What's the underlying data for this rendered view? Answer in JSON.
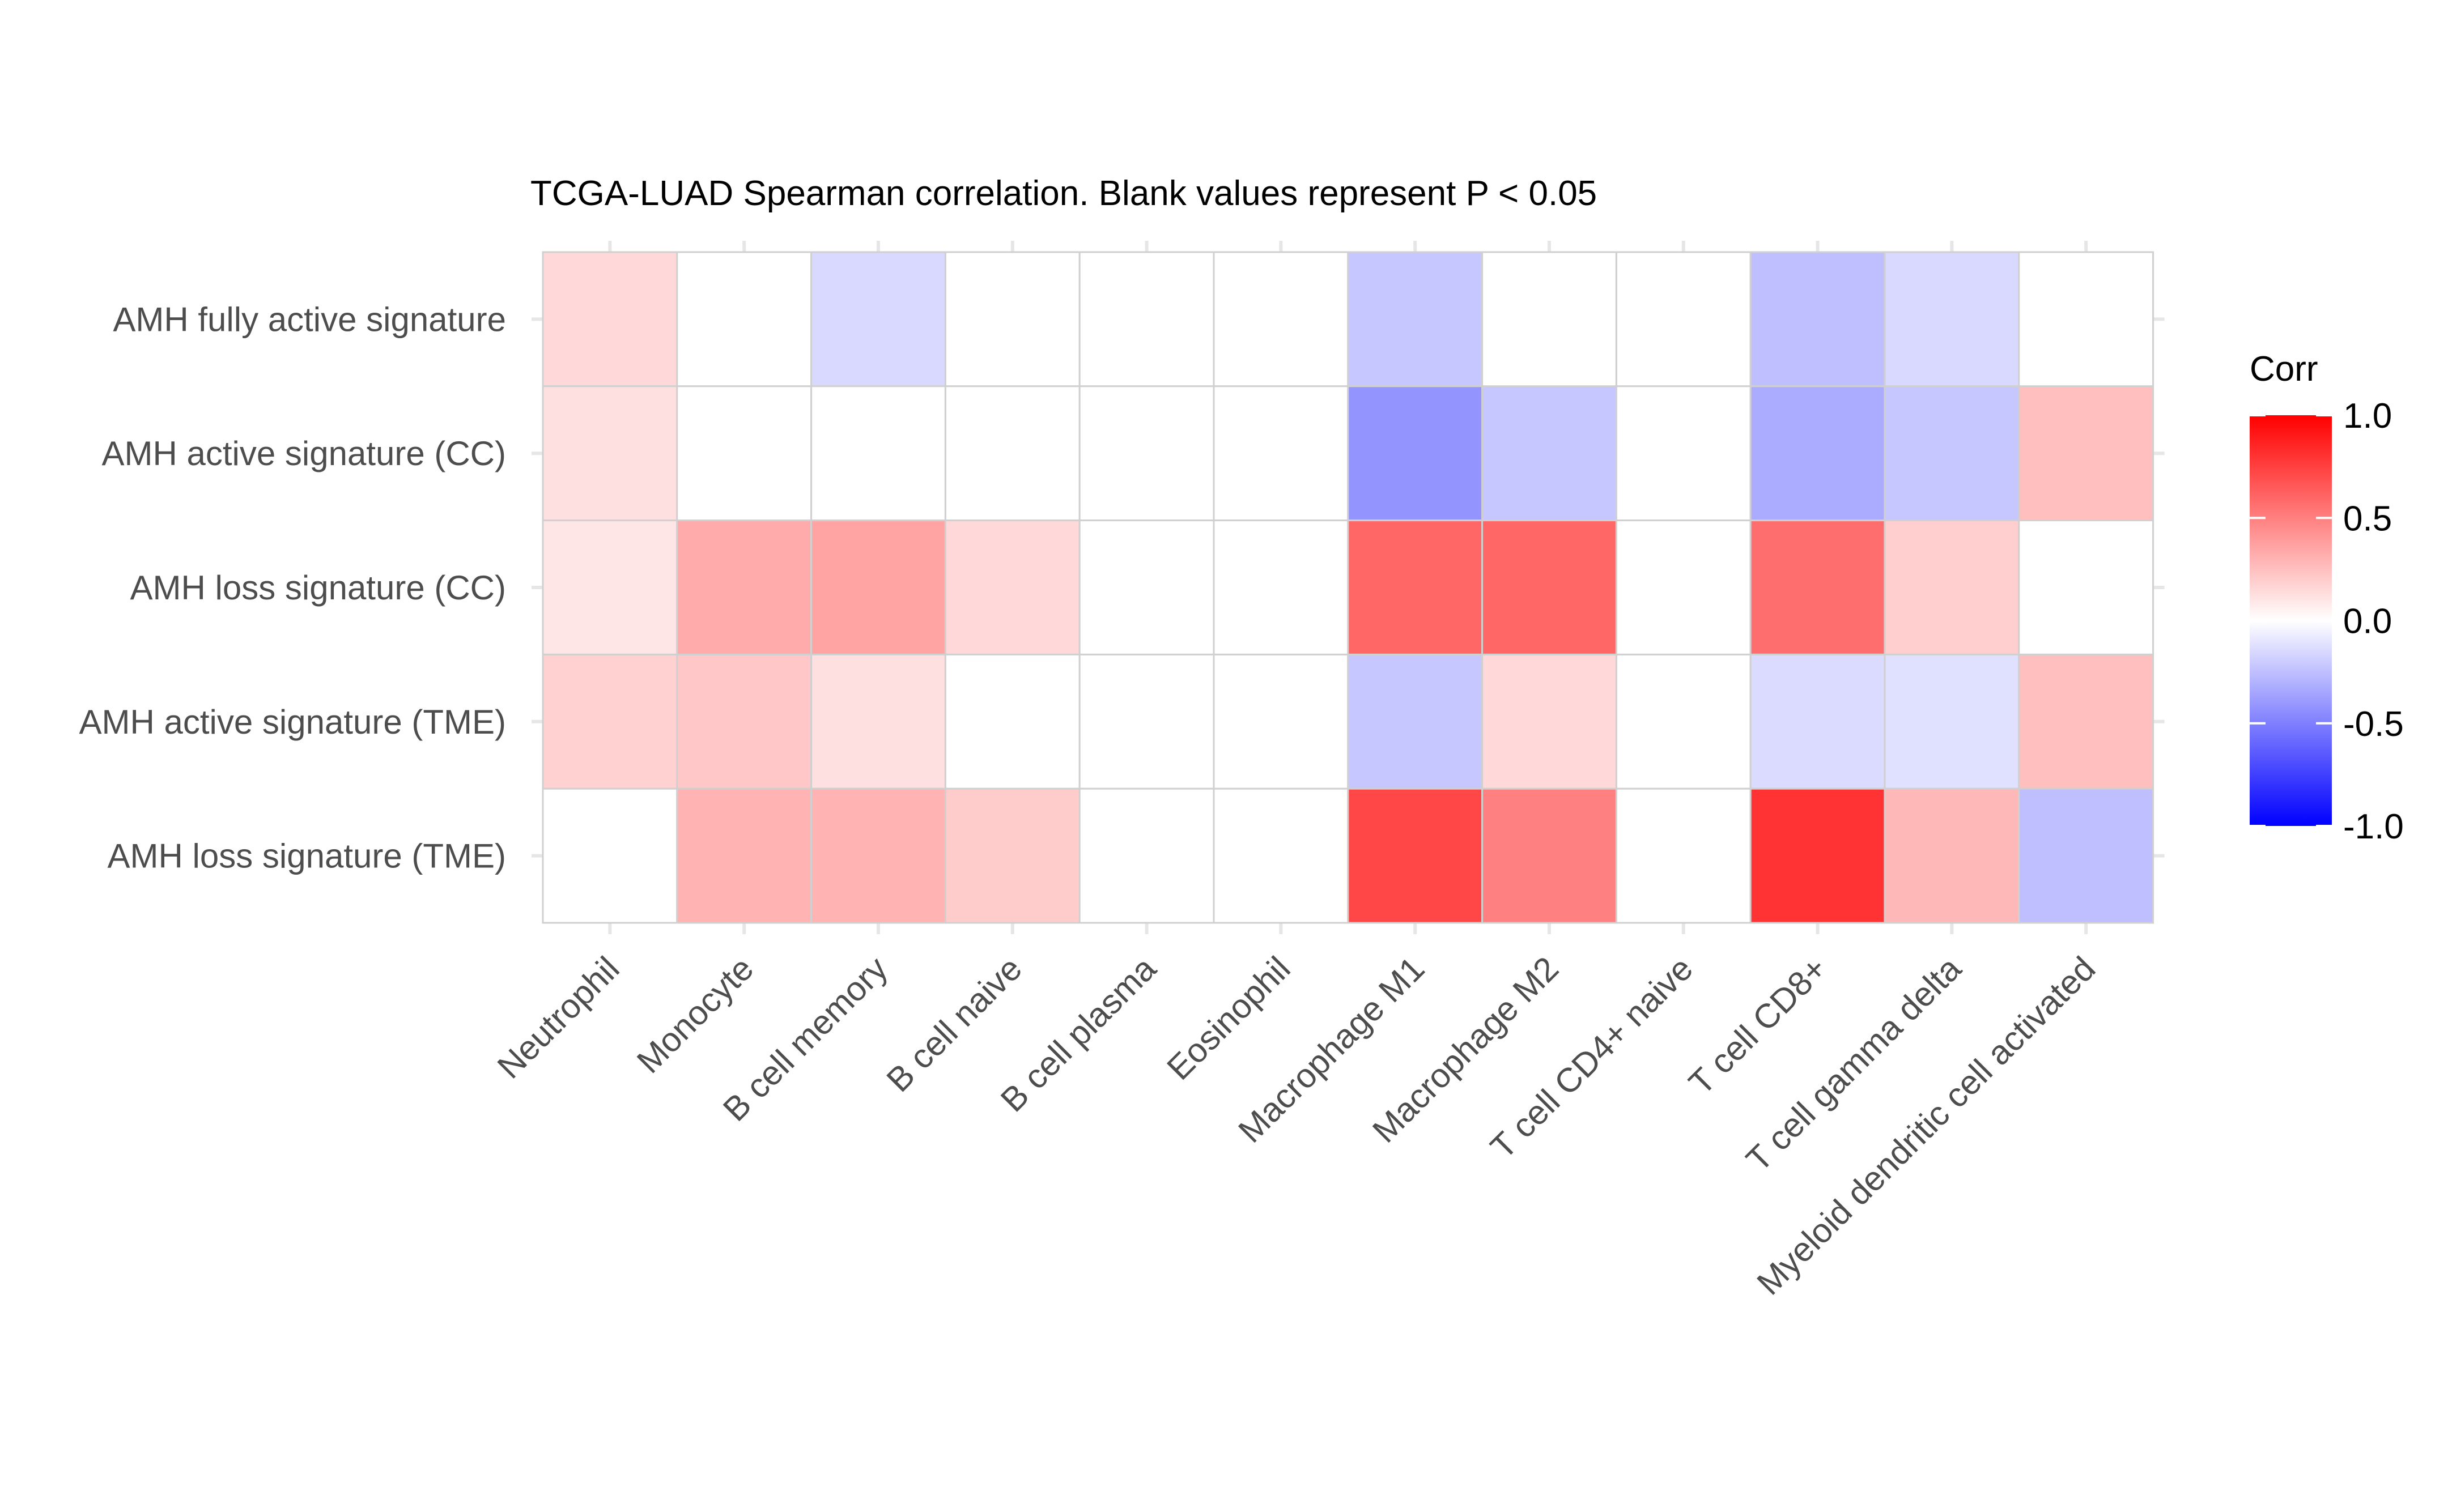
{
  "chart_data": {
    "type": "heatmap",
    "title": "TCGA-LUAD Spearman correlation. Blank values represent P < 0.05",
    "rows": [
      "AMH fully active signature",
      "AMH active signature (CC)",
      "AMH loss signature (CC)",
      "AMH active signature (TME)",
      "AMH loss signature (TME)"
    ],
    "columns": [
      "Neutrophil",
      "Monocyte",
      "B cell memory",
      "B cell naive",
      "B cell plasma",
      "Eosinophil",
      "Macrophage M1",
      "Macrophage M2",
      "T cell CD4+ naive",
      "T cell CD8+",
      "T cell gamma delta",
      "Myeloid dendritic cell activated"
    ],
    "values": [
      [
        0.15,
        null,
        -0.15,
        null,
        null,
        null,
        -0.22,
        null,
        null,
        -0.25,
        -0.15,
        null
      ],
      [
        0.12,
        null,
        null,
        null,
        null,
        null,
        -0.42,
        -0.22,
        null,
        -0.33,
        -0.22,
        0.25
      ],
      [
        0.1,
        0.33,
        0.36,
        0.15,
        null,
        null,
        0.6,
        0.6,
        null,
        0.57,
        0.19,
        null
      ],
      [
        0.18,
        0.22,
        0.12,
        null,
        null,
        null,
        -0.22,
        0.15,
        null,
        -0.14,
        -0.12,
        0.25
      ],
      [
        null,
        0.3,
        0.3,
        0.2,
        null,
        null,
        0.72,
        0.5,
        null,
        0.8,
        0.28,
        -0.25
      ]
    ],
    "legend": {
      "title": "Corr",
      "ticks": [
        "1.0",
        "0.5",
        "0.0",
        "-0.5",
        "-1.0"
      ],
      "tick_values": [
        1.0,
        0.5,
        0.0,
        -0.5,
        -1.0
      ],
      "limits": [
        -1.0,
        1.0
      ],
      "placement": "right"
    },
    "colors": {
      "low": "#0000ff",
      "mid": "#ffffff",
      "high": "#ff0000",
      "grid": "#d0d0d0",
      "tick": "#e6e6e6"
    },
    "grid": true
  }
}
